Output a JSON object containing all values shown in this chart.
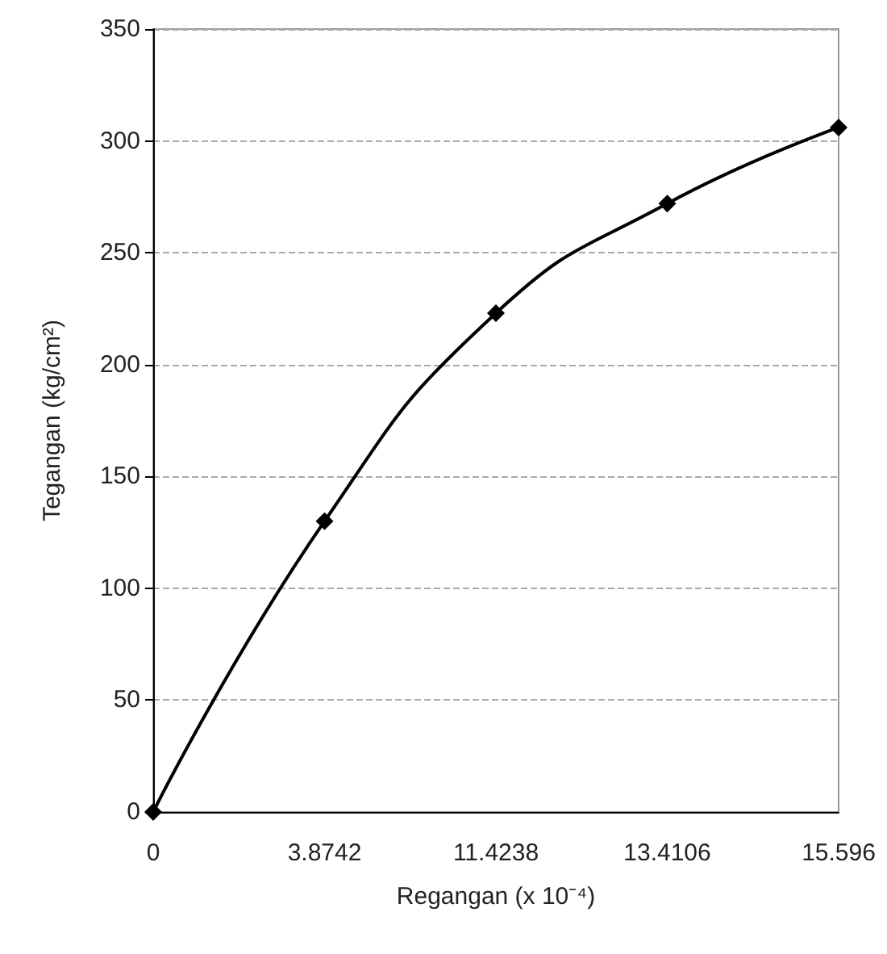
{
  "chart_data": {
    "type": "line",
    "xlabel": "Regangan (x 10⁻⁴)",
    "ylabel": "Tegangan (kg/cm²)",
    "categories": [
      "0",
      "3.8742",
      "11.4238",
      "13.4106",
      "15.596"
    ],
    "series": [
      {
        "color": "#000000",
        "values": [
          0,
          130,
          223,
          272,
          306
        ]
      }
    ],
    "ylim": [
      0,
      350
    ],
    "yticks": [
      0,
      50,
      100,
      150,
      200,
      250,
      300,
      350
    ],
    "grid": "y",
    "marker": "diamond",
    "line_style": "solid"
  }
}
